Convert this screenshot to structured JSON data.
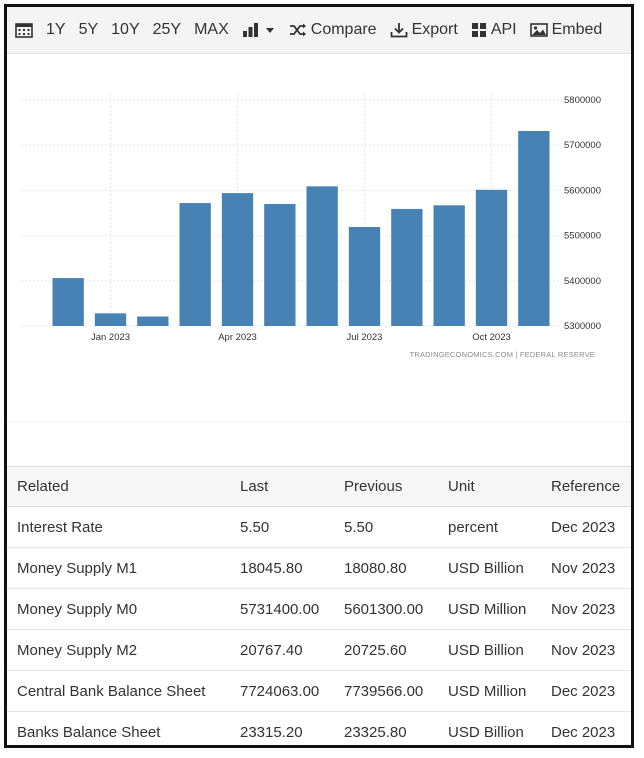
{
  "toolbar": {
    "ranges": [
      "1Y",
      "5Y",
      "10Y",
      "25Y",
      "MAX"
    ],
    "compare_label": "Compare",
    "export_label": "Export",
    "api_label": "API",
    "embed_label": "Embed"
  },
  "chart_data": {
    "type": "bar",
    "x": [
      "2022-12",
      "2023-01",
      "2023-02",
      "2023-03",
      "2023-04",
      "2023-05",
      "2023-06",
      "2023-07",
      "2023-08",
      "2023-09",
      "2023-10",
      "2023-11"
    ],
    "values": [
      5406000,
      5328000,
      5321000,
      5572000,
      5594000,
      5570000,
      5609000,
      5519000,
      5559000,
      5567000,
      5601300,
      5731400
    ],
    "x_tick_labels": [
      "Jan 2023",
      "Apr 2023",
      "Jul 2023",
      "Oct 2023"
    ],
    "y_tick_labels": [
      "5800000",
      "5700000",
      "5600000",
      "5500000",
      "5400000",
      "5300000"
    ],
    "ylim": [
      5300000,
      5800000
    ],
    "grid": true,
    "bar_color": "#4682b4",
    "source_label": "TRADINGECONOMICS.COM | FEDERAL RESERVE"
  },
  "table": {
    "headers": [
      "Related",
      "Last",
      "Previous",
      "Unit",
      "Reference"
    ],
    "rows": [
      [
        "Interest Rate",
        "5.50",
        "5.50",
        "percent",
        "Dec 2023"
      ],
      [
        "Money Supply M1",
        "18045.80",
        "18080.80",
        "USD Billion",
        "Nov 2023"
      ],
      [
        "Money Supply M0",
        "5731400.00",
        "5601300.00",
        "USD Million",
        "Nov 2023"
      ],
      [
        "Money Supply M2",
        "20767.40",
        "20725.60",
        "USD Billion",
        "Nov 2023"
      ],
      [
        "Central Bank Balance Sheet",
        "7724063.00",
        "7739566.00",
        "USD Million",
        "Dec 2023"
      ],
      [
        "Banks Balance Sheet",
        "23315.20",
        "23325.80",
        "USD Billion",
        "Dec 2023"
      ]
    ]
  }
}
